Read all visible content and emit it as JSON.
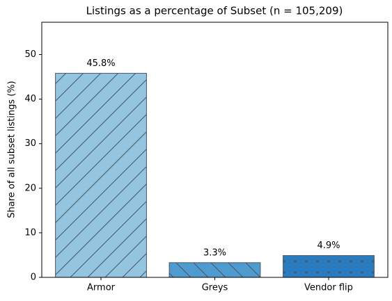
{
  "chart_data": {
    "type": "bar",
    "title": "Listings as a percentage of Subset (n = 105,209)",
    "y_label": "Share of all subset listings (%)",
    "categories": [
      "Armor",
      "Greys",
      "Vendor flip"
    ],
    "values": [
      45.8,
      3.3,
      4.9
    ],
    "value_labels": [
      "45.8%",
      "3.3%",
      "4.9%"
    ],
    "colors": [
      "#93c4e0",
      "#4f9bd0",
      "#2b7bbf"
    ],
    "hatches": [
      "/",
      "\\",
      "."
    ],
    "ylim": [
      0,
      57.25
    ],
    "yticks": [
      0,
      10,
      20,
      30,
      40,
      50
    ]
  }
}
